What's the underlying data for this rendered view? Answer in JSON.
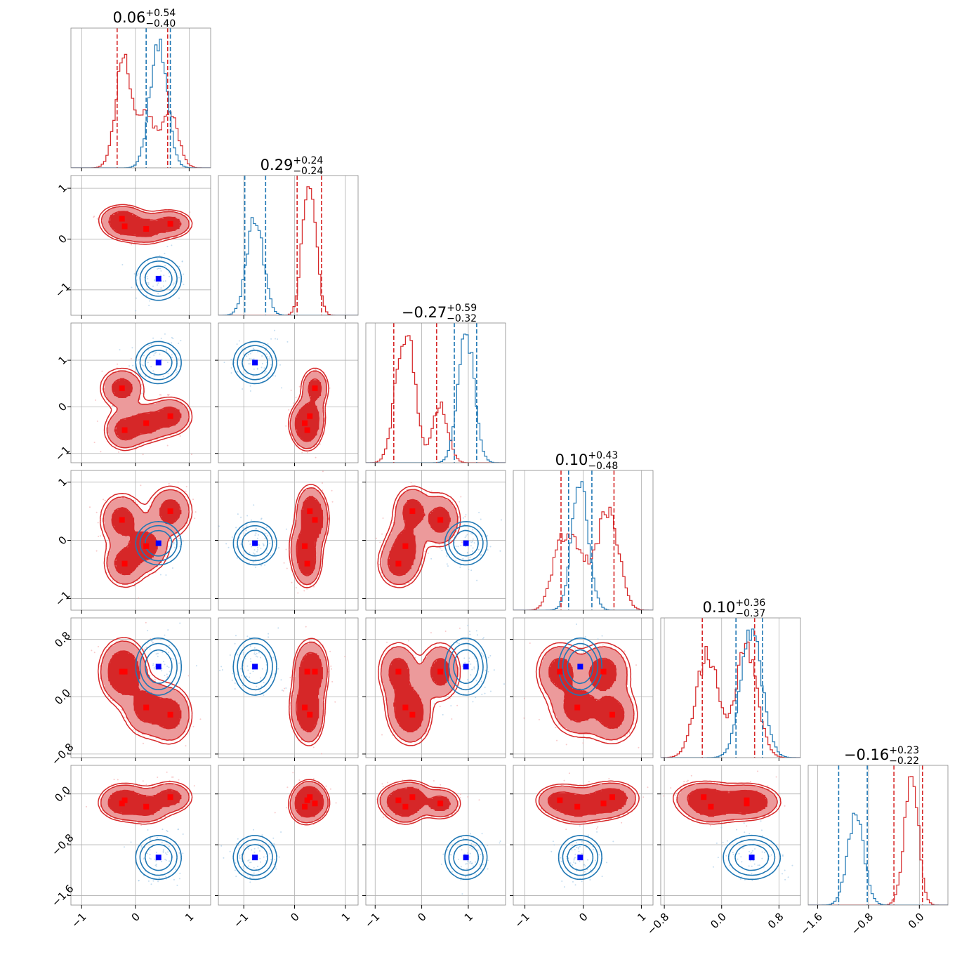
{
  "chart_data": {
    "type": "corner",
    "grid": true,
    "colors": {
      "red": "#d62728",
      "red_fill_light": "#ec9a9b",
      "blue": "#1f77b4",
      "truth_red": "#ff0000",
      "truth_blue": "#0000ff"
    },
    "parameters": [
      {
        "title_main": "0.06",
        "title_plus": "+0.54",
        "title_minus": "−0.40",
        "range": [
          -1.2,
          1.4
        ],
        "ticks": [
          -1,
          0,
          1
        ],
        "tick_labels": [
          "−1",
          "0",
          "1"
        ],
        "red_quantiles": [
          -0.34,
          0.6
        ],
        "blue_quantiles": [
          0.2,
          0.65
        ],
        "red_truths": [
          -0.25,
          0.2,
          0.65
        ],
        "blue_truth": 0.43
      },
      {
        "title_main": "0.29",
        "title_plus": "+0.24",
        "title_minus": "−0.24",
        "range": [
          -1.5,
          1.25
        ],
        "ticks": [
          -1,
          0,
          1
        ],
        "tick_labels": [
          "−1",
          "0",
          "1"
        ],
        "red_quantiles": [
          0.05,
          0.53
        ],
        "blue_quantiles": [
          -0.98,
          -0.57
        ],
        "red_truths": [
          0.2,
          0.25,
          0.4
        ],
        "blue_truth": -0.78
      },
      {
        "title_main": "−0.27",
        "title_plus": "+0.59",
        "title_minus": "−0.32",
        "range": [
          -1.2,
          1.8
        ],
        "ticks": [
          -1,
          0,
          1
        ],
        "tick_labels": [
          "−1",
          "0",
          "1"
        ],
        "red_quantiles": [
          -0.6,
          0.32
        ],
        "blue_quantiles": [
          0.7,
          1.18
        ],
        "red_truths": [
          -0.5,
          -0.3,
          0.4
        ],
        "blue_truth": 0.95
      },
      {
        "title_main": "0.10",
        "title_plus": "+0.43",
        "title_minus": "−0.48",
        "range": [
          -1.2,
          1.2
        ],
        "ticks": [
          -1,
          0,
          1
        ],
        "tick_labels": [
          "−1",
          "0",
          "1"
        ],
        "red_quantiles": [
          -0.38,
          0.53
        ],
        "blue_quantiles": [
          -0.25,
          0.15
        ],
        "red_truths": [
          -0.4,
          -0.1,
          0.35
        ],
        "blue_truth": -0.05
      },
      {
        "title_main": "0.10",
        "title_plus": "+0.36",
        "title_minus": "−0.37",
        "range": [
          -0.85,
          1.1
        ],
        "ticks": [
          -0.8,
          0.0,
          0.8
        ],
        "tick_labels": [
          "−0.8",
          "0.0",
          "0.8"
        ],
        "red_quantiles": [
          -0.27,
          0.46
        ],
        "blue_quantiles": [
          0.2,
          0.57
        ],
        "red_truths": [
          -0.1,
          0.3,
          0.35
        ],
        "blue_truth": 0.42
      },
      {
        "title_main": "−0.16",
        "title_plus": "+0.23",
        "title_minus": "−0.22",
        "range": [
          -1.75,
          0.45
        ],
        "ticks": [
          -1.6,
          -0.8,
          0.0
        ],
        "tick_labels": [
          "−1.6",
          "−0.8",
          "0.0"
        ],
        "red_quantiles": [
          -0.4,
          0.05
        ],
        "blue_quantiles": [
          -1.27,
          -0.82
        ],
        "red_truths": [
          -0.2,
          -0.15,
          -0.05
        ],
        "blue_truth": -1.0
      }
    ],
    "blue_means": [
      0.43,
      -0.78,
      0.95,
      -0.05,
      0.42,
      -1.0
    ],
    "blue_sigma": [
      0.16,
      0.16,
      0.17,
      0.14,
      0.15,
      0.13
    ],
    "red_components": [
      {
        "mean": [
          -0.25,
          0.4,
          0.4,
          0.35,
          0.35,
          -0.15
        ],
        "sigma": [
          0.15,
          0.1,
          0.16,
          0.17,
          0.15,
          0.09
        ]
      },
      {
        "mean": [
          -0.2,
          0.25,
          -0.5,
          -0.4,
          0.35,
          -0.1
        ],
        "sigma": [
          0.14,
          0.1,
          0.16,
          0.15,
          0.15,
          0.09
        ]
      },
      {
        "mean": [
          0.2,
          0.2,
          -0.35,
          -0.1,
          -0.15,
          -0.2
        ],
        "sigma": [
          0.16,
          0.11,
          0.15,
          0.17,
          0.15,
          0.1
        ]
      },
      {
        "mean": [
          0.65,
          0.3,
          -0.2,
          0.5,
          -0.25,
          -0.05
        ],
        "sigma": [
          0.15,
          0.1,
          0.15,
          0.16,
          0.15,
          0.09
        ]
      }
    ]
  }
}
